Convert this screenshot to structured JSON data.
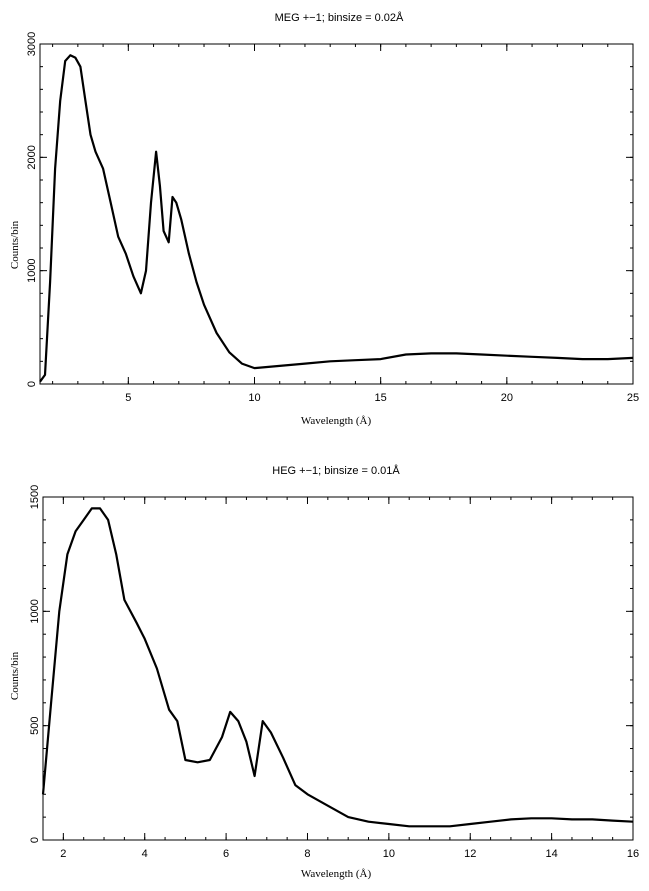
{
  "chart_data": [
    {
      "type": "line",
      "title": "MEG +−1; binsize = 0.02Å",
      "xlabel": "Wavelength (Å)",
      "ylabel": "Counts/bin",
      "xlim": [
        1.5,
        25
      ],
      "ylim": [
        0,
        3000
      ],
      "xticks": [
        5,
        10,
        15,
        20,
        25
      ],
      "yticks": [
        0,
        1000,
        2000,
        3000
      ],
      "xtick_labels": [
        "5",
        "10",
        "15",
        "20",
        "25"
      ],
      "ytick_labels": [
        "0",
        "1000",
        "2000",
        "3000"
      ],
      "grid": false,
      "series": [
        {
          "x": [
            1.5,
            1.7,
            1.9,
            2.1,
            2.3,
            2.5,
            2.7,
            2.9,
            3.1,
            3.3,
            3.5,
            3.7,
            4.0,
            4.3,
            4.6,
            4.9,
            5.2,
            5.5,
            5.7,
            5.9,
            6.1,
            6.25,
            6.4,
            6.6,
            6.75,
            6.9,
            7.1,
            7.4,
            7.7,
            8.0,
            8.5,
            9.0,
            9.5,
            10.0,
            11.0,
            12.0,
            13.0,
            14.0,
            15.0,
            16.0,
            17.0,
            18.0,
            19.0,
            20.0,
            21.0,
            22.0,
            23.0,
            24.0,
            25.0
          ],
          "values": [
            20,
            80,
            900,
            1900,
            2500,
            2850,
            2900,
            2880,
            2800,
            2500,
            2200,
            2050,
            1900,
            1600,
            1300,
            1150,
            950,
            800,
            1000,
            1600,
            2050,
            1750,
            1350,
            1250,
            1650,
            1600,
            1450,
            1150,
            900,
            700,
            450,
            280,
            180,
            140,
            160,
            180,
            200,
            210,
            220,
            260,
            270,
            270,
            260,
            250,
            240,
            230,
            220,
            220,
            230
          ]
        }
      ]
    },
    {
      "type": "line",
      "title": "HEG +−1; binsize = 0.01Å",
      "xlabel": "Wavelength (Å)",
      "ylabel": "Counts/bin",
      "xlim": [
        1.5,
        16
      ],
      "ylim": [
        0,
        1500
      ],
      "xticks": [
        2,
        4,
        6,
        8,
        10,
        12,
        14,
        16
      ],
      "yticks": [
        0,
        500,
        1000,
        1500
      ],
      "xtick_labels": [
        "2",
        "4",
        "6",
        "8",
        "10",
        "12",
        "14",
        "16"
      ],
      "ytick_labels": [
        "0",
        "500",
        "1000",
        "1500"
      ],
      "grid": false,
      "series": [
        {
          "x": [
            1.5,
            1.7,
            1.9,
            2.1,
            2.3,
            2.5,
            2.7,
            2.9,
            3.1,
            3.3,
            3.5,
            3.8,
            4.0,
            4.3,
            4.6,
            4.8,
            5.0,
            5.3,
            5.6,
            5.9,
            6.1,
            6.3,
            6.5,
            6.7,
            6.9,
            7.1,
            7.4,
            7.7,
            8.0,
            8.5,
            9.0,
            9.5,
            10.0,
            10.5,
            11.0,
            11.5,
            12.0,
            12.5,
            13.0,
            13.5,
            14.0,
            14.5,
            15.0,
            15.5,
            16.0
          ],
          "values": [
            200,
            600,
            1000,
            1250,
            1350,
            1400,
            1450,
            1450,
            1400,
            1250,
            1050,
            950,
            880,
            750,
            570,
            520,
            350,
            340,
            350,
            450,
            560,
            520,
            430,
            280,
            520,
            470,
            360,
            240,
            200,
            150,
            100,
            80,
            70,
            60,
            60,
            60,
            70,
            80,
            90,
            95,
            95,
            90,
            90,
            85,
            80
          ]
        }
      ]
    }
  ]
}
